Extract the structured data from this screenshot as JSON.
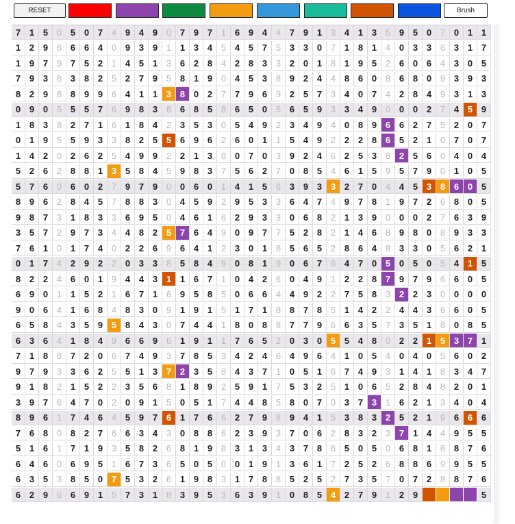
{
  "toolbar": {
    "reset_label": "RESET",
    "brush_label": "Brush",
    "palette": [
      {
        "name": "red",
        "color": "#ff0000"
      },
      {
        "name": "purple",
        "color": "#8e44ad"
      },
      {
        "name": "green",
        "color": "#0c8a3f"
      },
      {
        "name": "orange",
        "color": "#f39c12"
      },
      {
        "name": "blue",
        "color": "#3498db"
      },
      {
        "name": "teal",
        "color": "#1abc9c"
      },
      {
        "name": "dark-orange",
        "color": "#d35400"
      },
      {
        "name": "royal-blue",
        "color": "#0b55e0"
      }
    ]
  },
  "grid": {
    "rows": [
      "71505074949079716944791341359507011",
      "12966640939113454575330718140336317",
      "19797521451362842833201819526064305",
      "79383825279581904538924486086809393",
      "82988996411380277969257340742849313",
      "09055576983868586505659334900027459",
      "18382716184235305492349408966275207",
      "01955933825569626011549222865210707",
      "14202625499221380703924625382560404",
      "52628813584598375627085461595790105",
      "57606027979006014156393327044538605",
      "89628457883045929533647497819726805",
      "98731833695046162933068213900027639",
      "35729734482576490977528214689808933",
      "76101740226964123018565286483305621",
      "01742922033858490819067647050505415",
      "82246019443116710426049122879796605",
      "69011521671695850664492275832230000",
      "90641684830919151718878514224436605",
      "65843595843074418088779663573518085",
      "63641849669619117652030554802215371",
      "71887206749378534246496410540405602",
      "97933625513723584371051674931418347",
      "91821522356818925917532510652848201",
      "39764702091505174485807037316213404",
      "89617464597617662798941538325219666",
      "76808276634308862393706283237144955",
      "51617193582681983134378650506818876",
      "64606951673650500191361725268869955",
      "63538507532619831788525273570728876",
      "62966915731839536391085427912999995"
    ],
    "shaded_rows": [
      0,
      5,
      10,
      15,
      20,
      25,
      30
    ],
    "highlights": [
      {
        "r": 4,
        "c": 11,
        "color": "#f39c12"
      },
      {
        "r": 4,
        "c": 12,
        "color": "#8e44ad"
      },
      {
        "r": 5,
        "c": 33,
        "color": "#d35400"
      },
      {
        "r": 6,
        "c": 27,
        "color": "#8e44ad"
      },
      {
        "r": 7,
        "c": 11,
        "color": "#d35400"
      },
      {
        "r": 7,
        "c": 27,
        "color": "#8e44ad"
      },
      {
        "r": 8,
        "c": 28,
        "color": "#8e44ad"
      },
      {
        "r": 9,
        "c": 7,
        "color": "#f39c12"
      },
      {
        "r": 10,
        "c": 23,
        "color": "#f39c12"
      },
      {
        "r": 10,
        "c": 30,
        "color": "#d35400"
      },
      {
        "r": 10,
        "c": 31,
        "color": "#f39c12"
      },
      {
        "r": 10,
        "c": 32,
        "color": "#8e44ad"
      },
      {
        "r": 10,
        "c": 33,
        "color": "#8e44ad"
      },
      {
        "r": 13,
        "c": 11,
        "color": "#f39c12"
      },
      {
        "r": 13,
        "c": 12,
        "color": "#8e44ad"
      },
      {
        "r": 15,
        "c": 27,
        "color": "#8e44ad"
      },
      {
        "r": 15,
        "c": 33,
        "color": "#d35400"
      },
      {
        "r": 16,
        "c": 11,
        "color": "#d35400"
      },
      {
        "r": 16,
        "c": 27,
        "color": "#8e44ad"
      },
      {
        "r": 17,
        "c": 28,
        "color": "#8e44ad"
      },
      {
        "r": 19,
        "c": 7,
        "color": "#f39c12"
      },
      {
        "r": 20,
        "c": 23,
        "color": "#f39c12"
      },
      {
        "r": 20,
        "c": 30,
        "color": "#d35400"
      },
      {
        "r": 20,
        "c": 31,
        "color": "#f39c12"
      },
      {
        "r": 20,
        "c": 32,
        "color": "#8e44ad"
      },
      {
        "r": 20,
        "c": 33,
        "color": "#8e44ad"
      },
      {
        "r": 22,
        "c": 11,
        "color": "#f39c12"
      },
      {
        "r": 22,
        "c": 12,
        "color": "#8e44ad"
      },
      {
        "r": 24,
        "c": 26,
        "color": "#8e44ad"
      },
      {
        "r": 25,
        "c": 11,
        "color": "#d35400"
      },
      {
        "r": 25,
        "c": 27,
        "color": "#8e44ad"
      },
      {
        "r": 25,
        "c": 33,
        "color": "#d35400"
      },
      {
        "r": 26,
        "c": 28,
        "color": "#8e44ad"
      },
      {
        "r": 29,
        "c": 7,
        "color": "#f39c12"
      },
      {
        "r": 30,
        "c": 23,
        "color": "#f39c12"
      }
    ],
    "bottom_blocks": [
      {
        "c": 30,
        "color": "#d35400"
      },
      {
        "c": 31,
        "color": "#f39c12"
      },
      {
        "c": 32,
        "color": "#8e44ad"
      },
      {
        "c": 33,
        "color": "#8e44ad"
      }
    ]
  }
}
